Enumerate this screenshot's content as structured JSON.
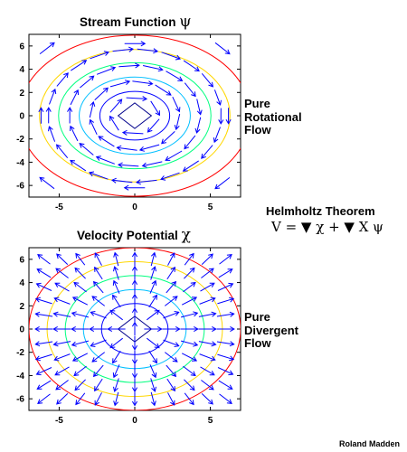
{
  "top_plot": {
    "title": "Stream Function",
    "symbol": "ψ",
    "label_lines": [
      "Pure",
      "Rotational",
      "Flow"
    ]
  },
  "bottom_plot": {
    "title": "Velocity Potential",
    "symbol": "χ",
    "label_lines": [
      "Pure",
      "Divergent",
      "Flow"
    ]
  },
  "theorem": {
    "title": "Helmholtz Theorem",
    "equation": "V = ▼ χ + ▼ X ψ"
  },
  "credit": "Roland Madden",
  "axes": {
    "xlim": [
      -7,
      7
    ],
    "ylim": [
      -7,
      7
    ],
    "xticks": [
      -5,
      0,
      5
    ],
    "yticks": [
      -6,
      -4,
      -2,
      0,
      2,
      4,
      6
    ],
    "xtick_labels": [
      "-5",
      "0",
      "5"
    ],
    "ytick_labels": [
      "-6",
      "-4",
      "-2",
      "0",
      "2",
      "4",
      "6"
    ]
  },
  "colors": {
    "arrow": "#0000ff",
    "contour_levels": [
      "#00008b",
      "#0000ff",
      "#00bfff",
      "#00ff7f",
      "#ffd700",
      "#ff0000"
    ]
  }
}
